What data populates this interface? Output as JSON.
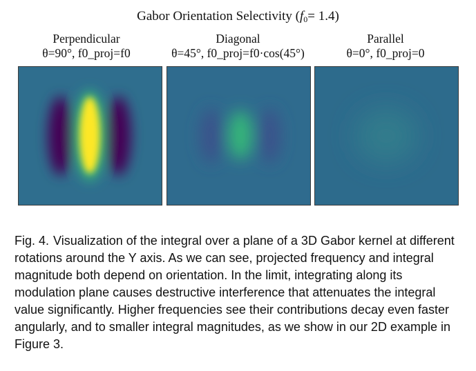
{
  "figure": {
    "title_prefix": "Gabor Orientation Selectivity (",
    "title_f": "f",
    "title_sub": "0",
    "title_suffix": "= 1.4)"
  },
  "panels": [
    {
      "name_label": "Perpendicular",
      "theta_text": "θ=90°, ",
      "formula_text": "f0_proj=f0"
    },
    {
      "name_label": "Diagonal",
      "theta_text": "θ=45°, ",
      "formula_text": "f0_proj=f0·cos(45°)"
    },
    {
      "name_label": "Parallel",
      "theta_text": "θ=0°, ",
      "formula_text": "f0_proj=0"
    }
  ],
  "caption": {
    "number": "Fig. 4.",
    "text": "Visualization of the integral over a plane of a 3D Gabor kernel at different rotations around the Y axis. As we can see, projected frequency and integral magnitude both depend on orientation. In the limit, integrating along its modulation plane causes destructive interference that attenuates the integral value significantly. Higher frequencies see their contributions decay even faster angularly, and to smaller integral magnitudes, as we show in our 2D example in Figure 3."
  },
  "colors": {
    "background": "#2e6e8e",
    "purple": "#440154",
    "yellow": "#fde725",
    "green": "#35b779",
    "teal_dark": "#2f6b8e"
  }
}
